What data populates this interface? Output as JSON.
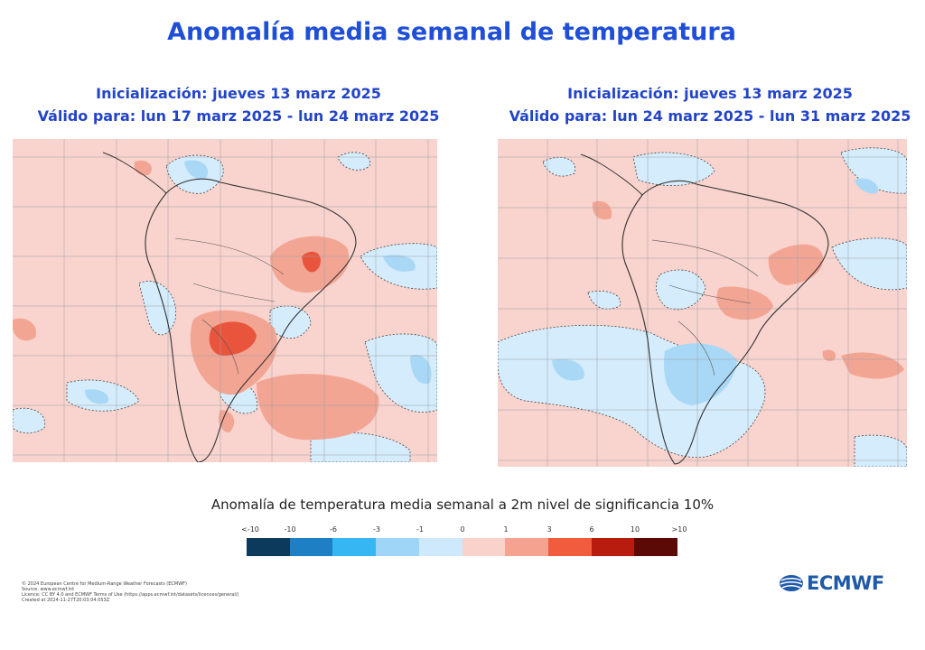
{
  "title": "Anomalía  media semanal de temperatura",
  "panels": [
    {
      "init": "Inicialización: jueves 13 marz 2025",
      "valid": "Válido para: lun 17 marz 2025 - lun 24 marz 2025"
    },
    {
      "init": "Inicialización: jueves 13 marz 2025",
      "valid": "Válido para: lun 24 marz 2025 - lun 31 marz 2025"
    }
  ],
  "legend": {
    "title": "Anomalía de temperatura media semanal a 2m nivel de significancia 10%",
    "ticks": [
      "<-10",
      "-10",
      "-6",
      "-3",
      "-1",
      "0",
      "1",
      "3",
      "6",
      "10",
      ">10"
    ],
    "colors": [
      "#0b3a5c",
      "#1f7fc4",
      "#36b6f2",
      "#9fd6f7",
      "#cde9fb",
      "#fad2cc",
      "#f5a390",
      "#f15c3e",
      "#b71c0e",
      "#5b0a05"
    ]
  },
  "credits": [
    "© 2024 European Centre for Medium-Range Weather Forecasts (ECMWF)",
    "Source: www.ecmwf.int",
    "Licence: CC BY 4.0 and ECMWF Terms of Use (https://apps.ecmwf.int/datasets/licences/general/)",
    "Created at 2024-11-27T20:03:04.053Z"
  ],
  "logo": {
    "text": "ECMWF",
    "color": "#1f5aa8"
  },
  "map_colors": {
    "ocean_base": "#f9d3cd",
    "cool_light": "#d4ecfb",
    "cool_mid": "#a9d8f6",
    "warm_mid": "#f3a594",
    "warm_strong": "#e9553c",
    "land_line": "#333333",
    "grid": "#9aa0a6"
  }
}
